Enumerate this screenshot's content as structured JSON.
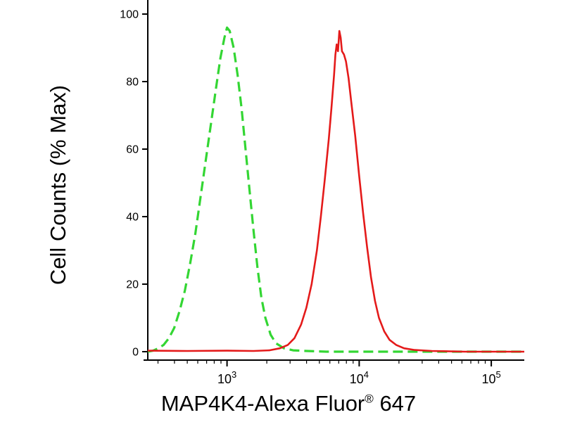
{
  "chart_data": {
    "type": "line",
    "chart_kind": "flow-cytometry-overlay-histogram",
    "title": "",
    "xlabel_prefix": "MAP4K4-Alexa Fluor",
    "xlabel_registered": "®",
    "xlabel_suffix": " 647",
    "ylabel": "Cell Counts (% Max)",
    "x_scale": "log10",
    "x_range_log10": [
      2.4,
      5.25
    ],
    "x_major_tick_exponents": [
      3,
      4,
      5
    ],
    "ylim": [
      0,
      100
    ],
    "y_ticks": [
      0,
      20,
      40,
      60,
      80,
      100
    ],
    "grid": false,
    "legend": "none",
    "axis_color": "#000000",
    "background_color": "#ffffff",
    "series": [
      {
        "name": "green-dashed-histogram",
        "color": "#33d633",
        "style": "dashed",
        "stroke_width": 3.2,
        "peak_log10_x": 3.0,
        "peak_y_pct": 96,
        "points_log10x_pct": [
          [
            2.4,
            0
          ],
          [
            2.44,
            0.3
          ],
          [
            2.48,
            1
          ],
          [
            2.52,
            2
          ],
          [
            2.56,
            4
          ],
          [
            2.6,
            7
          ],
          [
            2.64,
            12
          ],
          [
            2.68,
            18
          ],
          [
            2.72,
            26
          ],
          [
            2.76,
            35
          ],
          [
            2.8,
            46
          ],
          [
            2.84,
            57
          ],
          [
            2.88,
            68
          ],
          [
            2.92,
            79
          ],
          [
            2.95,
            87
          ],
          [
            2.98,
            93
          ],
          [
            3.0,
            96
          ],
          [
            3.02,
            95
          ],
          [
            3.05,
            90
          ],
          [
            3.08,
            82
          ],
          [
            3.11,
            72
          ],
          [
            3.14,
            60
          ],
          [
            3.17,
            48
          ],
          [
            3.2,
            36
          ],
          [
            3.23,
            25
          ],
          [
            3.26,
            16
          ],
          [
            3.29,
            10
          ],
          [
            3.33,
            5
          ],
          [
            3.37,
            2.5
          ],
          [
            3.43,
            1
          ],
          [
            3.5,
            0.4
          ],
          [
            3.6,
            0.2
          ],
          [
            3.75,
            0
          ],
          [
            5.25,
            0
          ]
        ]
      },
      {
        "name": "red-solid-histogram",
        "color": "#e41a1a",
        "style": "solid",
        "stroke_width": 2.6,
        "peak_log10_x": 3.85,
        "peak_y_pct": 95,
        "points_log10x_pct": [
          [
            2.4,
            0.3
          ],
          [
            2.7,
            0.2
          ],
          [
            3.0,
            0.3
          ],
          [
            3.2,
            0.2
          ],
          [
            3.32,
            0.4
          ],
          [
            3.4,
            1
          ],
          [
            3.46,
            2
          ],
          [
            3.51,
            4
          ],
          [
            3.56,
            8
          ],
          [
            3.6,
            13
          ],
          [
            3.64,
            20
          ],
          [
            3.68,
            30
          ],
          [
            3.71,
            40
          ],
          [
            3.74,
            51
          ],
          [
            3.77,
            63
          ],
          [
            3.79,
            72
          ],
          [
            3.81,
            82
          ],
          [
            3.82,
            88
          ],
          [
            3.83,
            91
          ],
          [
            3.84,
            89
          ],
          [
            3.85,
            95
          ],
          [
            3.86,
            93
          ],
          [
            3.87,
            89
          ],
          [
            3.885,
            88
          ],
          [
            3.9,
            86
          ],
          [
            3.92,
            81
          ],
          [
            3.94,
            74
          ],
          [
            3.97,
            64
          ],
          [
            4.0,
            52
          ],
          [
            4.03,
            41
          ],
          [
            4.06,
            31
          ],
          [
            4.09,
            22
          ],
          [
            4.12,
            15
          ],
          [
            4.15,
            10
          ],
          [
            4.19,
            6
          ],
          [
            4.23,
            3.5
          ],
          [
            4.28,
            2
          ],
          [
            4.34,
            1
          ],
          [
            4.42,
            0.5
          ],
          [
            4.55,
            0.2
          ],
          [
            4.8,
            0
          ],
          [
            5.25,
            0
          ]
        ]
      }
    ]
  }
}
